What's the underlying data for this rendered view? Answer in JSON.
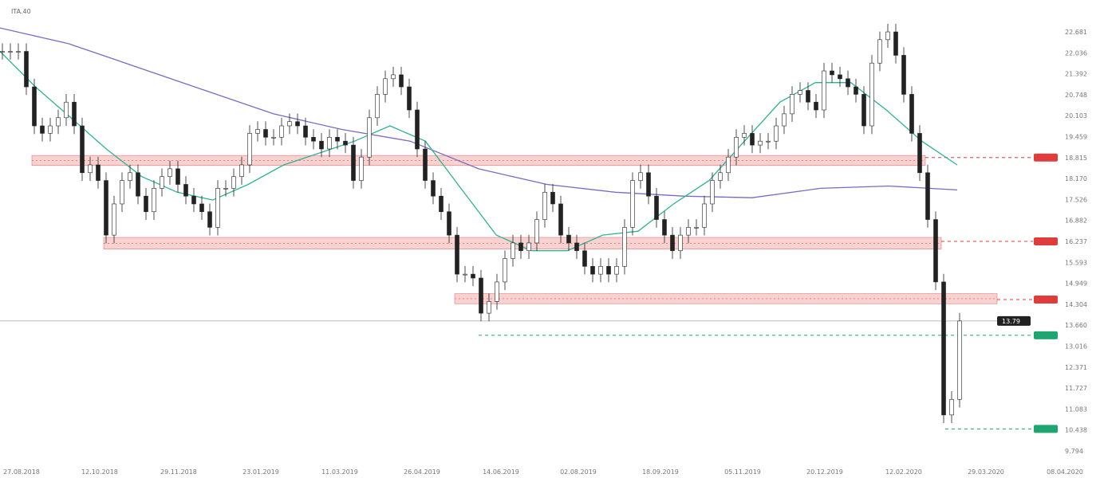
{
  "header": {
    "symbol": "ITA.40"
  },
  "chart_data": {
    "type": "candlestick",
    "y_ticks": [
      "22.681",
      "22.036",
      "21.392",
      "20.748",
      "20.103",
      "19.459",
      "18.815",
      "18.170",
      "17.526",
      "16.882",
      "16.237",
      "15.593",
      "14.949",
      "14.304",
      "13.660",
      "13.016",
      "12.371",
      "11.727",
      "11.083",
      "10.438",
      "9.794"
    ],
    "ylim": [
      9.794,
      22.681
    ],
    "x_ticks": [
      "27.08.2018",
      "12.10.2018",
      "29.11.2018",
      "23.01.2019",
      "11.03.2019",
      "26.04.2019",
      "14.06.2019",
      "02.08.2019",
      "18.09.2019",
      "05.11.2019",
      "20.12.2019",
      "12.02.2020",
      "29.03.2020",
      "08.04.2020"
    ],
    "closes": [
      22.08,
      22.08,
      22.08,
      20.99,
      19.79,
      19.56,
      19.79,
      20.04,
      20.52,
      19.79,
      18.35,
      18.59,
      18.11,
      16.43,
      17.39,
      18.11,
      18.35,
      17.63,
      17.15,
      17.87,
      18.23,
      18.47,
      17.99,
      17.63,
      17.39,
      17.15,
      16.67,
      17.87,
      17.87,
      18.23,
      18.59,
      19.56,
      19.68,
      19.44,
      19.44,
      19.79,
      19.92,
      19.79,
      19.44,
      19.32,
      19.08,
      19.44,
      19.32,
      19.2,
      18.11,
      18.83,
      20.04,
      20.76,
      21.24,
      21.36,
      20.99,
      20.28,
      19.08,
      18.11,
      17.63,
      17.15,
      16.43,
      15.23,
      15.23,
      15.11,
      14.03,
      14.39,
      14.99,
      15.71,
      16.19,
      15.95,
      16.19,
      16.91,
      17.75,
      17.39,
      16.43,
      16.19,
      15.95,
      15.47,
      15.23,
      15.47,
      15.23,
      15.47,
      16.67,
      18.11,
      18.35,
      17.63,
      16.91,
      16.43,
      15.95,
      16.43,
      16.67,
      16.67,
      17.39,
      18.11,
      18.35,
      18.83,
      19.44,
      19.56,
      19.2,
      19.32,
      19.32,
      19.79,
      20.16,
      20.76,
      20.88,
      20.52,
      20.28,
      21.48,
      21.36,
      21.24,
      20.99,
      20.76,
      19.79,
      21.72,
      22.44,
      22.68,
      21.96,
      20.76,
      19.56,
      18.35,
      16.91,
      14.99,
      10.9,
      11.38,
      13.79
    ],
    "ma_long": [
      22.8,
      22.32,
      21.6,
      20.88,
      20.16,
      19.68,
      19.32,
      18.47,
      17.99,
      17.75,
      17.63,
      17.58,
      17.87,
      17.94,
      17.82
    ],
    "ma_short": [
      22.08,
      20.99,
      20.04,
      19.08,
      18.23,
      17.75,
      17.51,
      17.99,
      18.59,
      18.95,
      19.32,
      19.79,
      19.32,
      17.87,
      16.43,
      15.95,
      15.95,
      16.43,
      16.55,
      17.39,
      18.11,
      19.32,
      20.52,
      21.12,
      21.12,
      20.28,
      19.32,
      18.59
    ],
    "resistance_zones": [
      [
        18.57,
        18.88
      ],
      [
        16.0,
        16.36
      ],
      [
        14.32,
        14.63
      ]
    ],
    "resistance_levels": [
      18.815,
      16.237,
      14.45
    ],
    "support_levels": [
      13.35,
      10.47
    ],
    "current_price": "13.79",
    "colors": {
      "up": "#ffffff",
      "down": "#222222",
      "ma_long": "#7b68c8",
      "ma_short": "#2bb594",
      "zone": "#f7c6c6",
      "zone_edge": "#e05555",
      "resistance": "#e03c3c",
      "support": "#1ea672",
      "current": "#222222"
    },
    "grid": false
  }
}
